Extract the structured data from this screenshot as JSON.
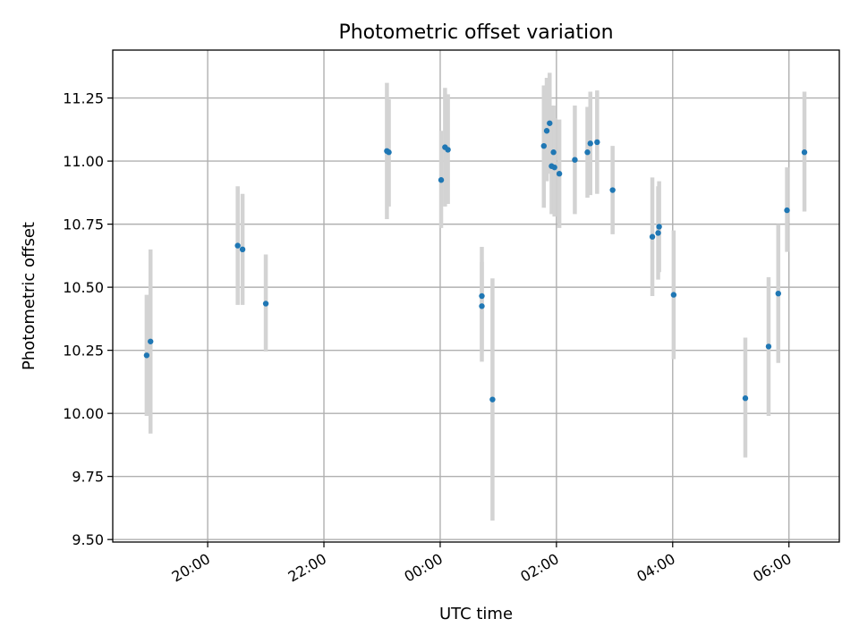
{
  "chart_data": {
    "type": "scatter",
    "title": "Photometric offset variation",
    "xlabel": "UTC time",
    "ylabel": "Photometric offset",
    "grid": true,
    "x_axis": {
      "unit": "time of day (UTC), spanning midnight",
      "range": [
        "18:22",
        "06:52"
      ],
      "ticks": [
        "20:00",
        "22:00",
        "00:00",
        "02:00",
        "04:00",
        "06:00"
      ],
      "tick_label_rotation_deg": 30
    },
    "y_axis": {
      "range": [
        9.49,
        11.44
      ],
      "ticks": [
        "9.50",
        "9.75",
        "10.00",
        "10.25",
        "10.50",
        "10.75",
        "11.00",
        "11.25"
      ]
    },
    "colors": {
      "points": "#1f77b4",
      "error_bars": "#d3d3d3",
      "grid": "#b0b0b0"
    },
    "points": [
      {
        "t": "18:57",
        "y": 10.23,
        "lo": 9.99,
        "hi": 10.47
      },
      {
        "t": "19:01",
        "y": 10.285,
        "lo": 9.92,
        "hi": 10.65
      },
      {
        "t": "20:31",
        "y": 10.665,
        "lo": 10.43,
        "hi": 10.9
      },
      {
        "t": "20:36",
        "y": 10.65,
        "lo": 10.43,
        "hi": 10.87
      },
      {
        "t": "21:00",
        "y": 10.435,
        "lo": 10.245,
        "hi": 10.63
      },
      {
        "t": "23:05",
        "y": 11.04,
        "lo": 10.77,
        "hi": 11.31
      },
      {
        "t": "23:07",
        "y": 11.035,
        "lo": 10.82,
        "hi": 11.245
      },
      {
        "t": "00:01",
        "y": 10.925,
        "lo": 10.735,
        "hi": 11.12
      },
      {
        "t": "00:05",
        "y": 11.055,
        "lo": 10.82,
        "hi": 11.29
      },
      {
        "t": "00:08",
        "y": 11.045,
        "lo": 10.83,
        "hi": 11.265
      },
      {
        "t": "00:43",
        "y": 10.465,
        "lo": 10.205,
        "hi": 10.66
      },
      {
        "t": "00:43",
        "y": 10.425,
        "lo": 10.25,
        "hi": 10.6
      },
      {
        "t": "00:54",
        "y": 10.055,
        "lo": 9.575,
        "hi": 10.535
      },
      {
        "t": "01:47",
        "y": 11.06,
        "lo": 10.815,
        "hi": 11.3
      },
      {
        "t": "01:50",
        "y": 11.12,
        "lo": 10.92,
        "hi": 11.33
      },
      {
        "t": "01:53",
        "y": 11.15,
        "lo": 10.95,
        "hi": 11.35
      },
      {
        "t": "01:55",
        "y": 10.98,
        "lo": 10.79,
        "hi": 11.18
      },
      {
        "t": "01:57",
        "y": 11.035,
        "lo": 10.84,
        "hi": 11.22
      },
      {
        "t": "01:58",
        "y": 10.975,
        "lo": 10.78,
        "hi": 11.17
      },
      {
        "t": "02:03",
        "y": 10.95,
        "lo": 10.735,
        "hi": 11.165
      },
      {
        "t": "02:19",
        "y": 11.005,
        "lo": 10.79,
        "hi": 11.22
      },
      {
        "t": "02:32",
        "y": 11.035,
        "lo": 10.855,
        "hi": 11.215
      },
      {
        "t": "02:35",
        "y": 11.07,
        "lo": 10.865,
        "hi": 11.275
      },
      {
        "t": "02:42",
        "y": 11.075,
        "lo": 10.87,
        "hi": 11.28
      },
      {
        "t": "02:58",
        "y": 10.885,
        "lo": 10.71,
        "hi": 11.06
      },
      {
        "t": "03:39",
        "y": 10.7,
        "lo": 10.465,
        "hi": 10.935
      },
      {
        "t": "03:45",
        "y": 10.715,
        "lo": 10.53,
        "hi": 10.9
      },
      {
        "t": "03:46",
        "y": 10.74,
        "lo": 10.56,
        "hi": 10.92
      },
      {
        "t": "04:01",
        "y": 10.47,
        "lo": 10.215,
        "hi": 10.725
      },
      {
        "t": "05:15",
        "y": 10.06,
        "lo": 9.825,
        "hi": 10.3
      },
      {
        "t": "05:39",
        "y": 10.265,
        "lo": 9.99,
        "hi": 10.54
      },
      {
        "t": "05:49",
        "y": 10.475,
        "lo": 10.2,
        "hi": 10.75
      },
      {
        "t": "05:58",
        "y": 10.805,
        "lo": 10.64,
        "hi": 10.975
      },
      {
        "t": "06:16",
        "y": 11.035,
        "lo": 10.8,
        "hi": 11.275
      }
    ]
  }
}
